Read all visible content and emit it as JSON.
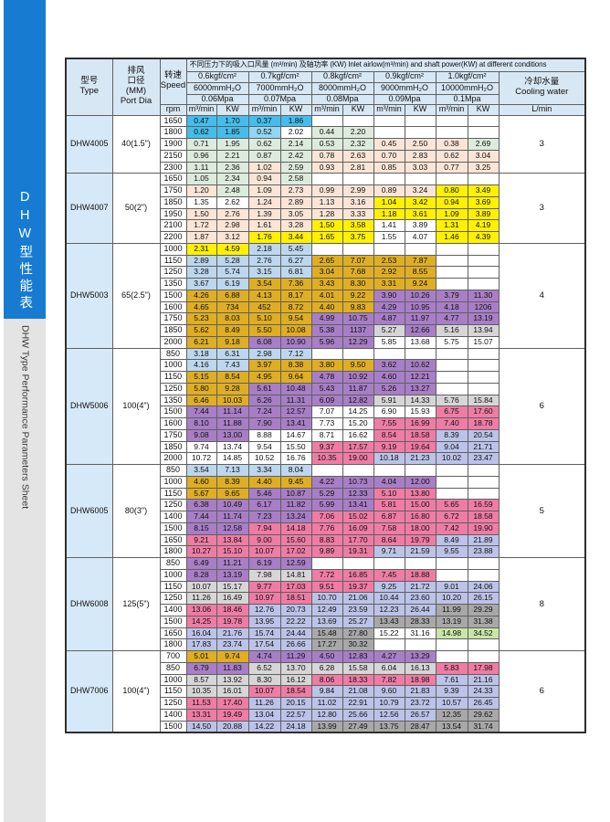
{
  "sidebar": {
    "title_cn": "DHW型性能表",
    "title_en": "DHW Type Performance Parameters Sheet",
    "bar_color": "#177BD1",
    "bar_gray": "#E4E4E4"
  },
  "table": {
    "header": {
      "model": "型号\nType",
      "port": "排风\n口径\n(MM)\nPort Dia",
      "speed": "转速\nSpeed",
      "rpm": "rpm",
      "main_title": "不同压力下的吸入口风量 (m³/min) 及轴功率 (KW) Inlet airlow(m³/min) and shaft power(KW) at different conditions",
      "cooling": "冷却水量\nCooling water",
      "cooling_unit": "L/min",
      "unit_flow": "m³/min",
      "unit_power": "KW",
      "header_bg": "#D8E7F4",
      "groups": [
        {
          "kgf": "0.6kgf/cm²",
          "mmh2o": "6000mmH₂O",
          "mpa": "0.06Mpa"
        },
        {
          "kgf": "0.7kgf/cm²",
          "mmh2o": "7000mmH₂O",
          "mpa": "0.07Mpa"
        },
        {
          "kgf": "0.8kgf/cm²",
          "mmh2o": "8000mmH₂O",
          "mpa": "0.08Mpa"
        },
        {
          "kgf": "0.9kgf/cm²",
          "mmh2o": "9000mmH₂O",
          "mpa": "0.09Mpa"
        },
        {
          "kgf": "1.0kgf/cm²",
          "mmh2o": "10000mmH₂O",
          "mpa": "0.1Mpa"
        }
      ]
    },
    "palette": {
      "B": "#45BDEC",
      "C": "#93D5F3",
      "L": "#BDD7EE",
      "G": "#DDEBDC",
      "P": "#FBE5D6",
      "Y": "#FFF101",
      "O": "#DFAE24",
      "U": "#A87EC6",
      "K": "#EF7CA4",
      "V": "#BCC3E8",
      "A": "#A8A8A8",
      "D": "#D6D6D6",
      "N": "#C9E6A8",
      "W": "#FFFFFF"
    },
    "groups": [
      {
        "model": "DHW4005",
        "port": "40(1.5\")",
        "cooling": "3",
        "rows": [
          {
            "rpm": "1650",
            "c": [
              "0.47|B",
              "1.70|B",
              "0.37|B",
              "1.86|B",
              "|W",
              "|W",
              "|W",
              "|W",
              "|W",
              "|W"
            ]
          },
          {
            "rpm": "1800",
            "c": [
              "0.62|B",
              "1.85|B",
              "0.52|C",
              "2.02|W",
              "0.44|G",
              "2.20|G",
              "|W",
              "|W",
              "|W",
              "|W"
            ]
          },
          {
            "rpm": "1900",
            "c": [
              "0.71|G",
              "1.95|G",
              "0.62|G",
              "2.14|G",
              "0.53|G",
              "2.32|G",
              "0.45|P",
              "2.50|P",
              "0.38|P",
              "2.69|G"
            ]
          },
          {
            "rpm": "2150",
            "c": [
              "0.96|G",
              "2.21|G",
              "0.87|G",
              "2.42|G",
              "0.78|P",
              "2.63|P",
              "0.70|P",
              "2.83|P",
              "0.62|P",
              "3.04|P"
            ]
          },
          {
            "rpm": "2300",
            "c": [
              "1.11|G",
              "2.36|G",
              "1.02|P",
              "2.59|G",
              "0.93|P",
              "2.81|P",
              "0.85|P",
              "3.03|P",
              "0.77|P",
              "3.25|P"
            ]
          }
        ]
      },
      {
        "model": "DHW4007",
        "port": "50(2\")",
        "cooling": "3",
        "rows": [
          {
            "rpm": "1650",
            "c": [
              "1.05|G",
              "2.34|G",
              "0.94|P",
              "2.58|G",
              "|W",
              "|W",
              "|W",
              "|W",
              "|W",
              "|W"
            ]
          },
          {
            "rpm": "1750",
            "c": [
              "1.20|P",
              "2.48|G",
              "1.09|P",
              "2.73|P",
              "0.99|P",
              "2.99|P",
              "0.89|P",
              "3.24|P",
              "0.80|Y",
              "3.49|Y"
            ]
          },
          {
            "rpm": "1850",
            "c": [
              "1.35|W",
              "2.62|W",
              "1.24|P",
              "2.89|P",
              "1.13|P",
              "3.16|P",
              "1.04|Y",
              "3.42|Y",
              "0.94|Y",
              "3.69|Y"
            ]
          },
          {
            "rpm": "1950",
            "c": [
              "1.50|P",
              "2.76|P",
              "1.39|P",
              "3.05|P",
              "1.28|P",
              "3.33|P",
              "1.18|Y",
              "3.61|Y",
              "1.09|Y",
              "3.89|Y"
            ]
          },
          {
            "rpm": "2100",
            "c": [
              "1.72|P",
              "2.98|P",
              "1.61|P",
              "3.28|P",
              "1.50|Y",
              "3.58|Y",
              "1.41|W",
              "3.89|W",
              "1.31|Y",
              "4.19|Y"
            ]
          },
          {
            "rpm": "2200",
            "c": [
              "1.87|P",
              "3.12|P",
              "1.76|Y",
              "3.44|Y",
              "1.65|Y",
              "3.75|Y",
              "1.55|W",
              "4.07|W",
              "1.46|Y",
              "4.39|Y"
            ]
          }
        ]
      },
      {
        "model": "DHW5003",
        "port": "65(2.5\")",
        "cooling": "4",
        "rows": [
          {
            "rpm": "1000",
            "c": [
              "2.31|Y",
              "4.59|Y",
              "2.18|L",
              "5.45|L",
              "|W",
              "|W",
              "|W",
              "|W",
              "|W",
              "|W"
            ]
          },
          {
            "rpm": "1150",
            "c": [
              "2.89|L",
              "5.28|L",
              "2.76|L",
              "6.27|L",
              "2.65|O",
              "7.07|O",
              "2.53|O",
              "7.87|O",
              "|W",
              "|W"
            ]
          },
          {
            "rpm": "1250",
            "c": [
              "3.28|L",
              "5.74|L",
              "3.15|L",
              "6.81|L",
              "3.04|O",
              "7.68|O",
              "2.92|O",
              "8.55|O",
              "|W",
              "|W"
            ]
          },
          {
            "rpm": "1350",
            "c": [
              "3.67|L",
              "6.19|L",
              "3.54|O",
              "7.36|O",
              "3.43|O",
              "8.30|O",
              "3.31|O",
              "9.24|O",
              "|W",
              "|W"
            ]
          },
          {
            "rpm": "1500",
            "c": [
              "4.26|O",
              "6.88|O",
              "4.13|O",
              "8.17|O",
              "4.01|O",
              "9.22|O",
              "3.90|U",
              "10.26|U",
              "3.79|U",
              "11.30|U"
            ]
          },
          {
            "rpm": "1600",
            "c": [
              "4.65|O",
              "734|O",
              "452|O",
              "8.72|O",
              "4.40|O",
              "9.83|O",
              "4.29|U",
              "10.95|U",
              "4.18|U",
              "1206|U"
            ]
          },
          {
            "rpm": "1750",
            "c": [
              "5.23|O",
              "8.03|O",
              "5.10|O",
              "9.54|O",
              "4.99|U",
              "10.75|U",
              "4.87|U",
              "11.97|U",
              "4.77|U",
              "13.19|U"
            ]
          },
          {
            "rpm": "1850",
            "c": [
              "5.62|O",
              "8.49|O",
              "5.50|O",
              "10.08|O",
              "5.38|U",
              "1137|U",
              "5.27|D",
              "12.66|U",
              "5.16|D",
              "13.94|D"
            ]
          },
          {
            "rpm": "2000",
            "c": [
              "6.21|O",
              "9.18|O",
              "6.08|U",
              "10.90|U",
              "5.96|U",
              "12.29|U",
              "5.85|W",
              "13.68|W",
              "5.75|W",
              "15.07|W"
            ]
          }
        ]
      },
      {
        "model": "DHW5006",
        "port": "100(4\")",
        "cooling": "6",
        "rows": [
          {
            "rpm": "850",
            "c": [
              "3.18|L",
              "6.31|L",
              "2.98|L",
              "7.12|L",
              "|W",
              "|W",
              "|W",
              "|W",
              "|W",
              "|W"
            ]
          },
          {
            "rpm": "1000",
            "c": [
              "4.16|L",
              "7.43|L",
              "3.97|O",
              "8.38|O",
              "3.80|O",
              "9.50|O",
              "3.62|U",
              "10.62|U",
              "|W",
              "|W"
            ]
          },
          {
            "rpm": "1150",
            "c": [
              "5.15|O",
              "8.54|O",
              "4.95|O",
              "9.64|O",
              "4.78|U",
              "10.92|U",
              "4.60|U",
              "12.21|U",
              "|W",
              "|W"
            ]
          },
          {
            "rpm": "1250",
            "c": [
              "5.80|O",
              "9.28|O",
              "5.61|U",
              "10.48|U",
              "5.43|U",
              "11.87|U",
              "5.26|U",
              "13.27|U",
              "|W",
              "|W"
            ]
          },
          {
            "rpm": "1350",
            "c": [
              "6.46|O",
              "10.03|O",
              "6.26|U",
              "11.31|U",
              "6.09|U",
              "12.82|U",
              "5.91|D",
              "14.33|D",
              "5.76|D",
              "15.84|D"
            ]
          },
          {
            "rpm": "1500",
            "c": [
              "7.44|U",
              "11.14|U",
              "7.24|U",
              "12.57|U",
              "7.07|W",
              "14.25|W",
              "6.90|W",
              "15.93|W",
              "6.75|K",
              "17.60|K"
            ]
          },
          {
            "rpm": "1600",
            "c": [
              "8.10|U",
              "11.88|U",
              "7.90|U",
              "13.41|U",
              "7.73|W",
              "15.20|W",
              "7.55|K",
              "16.99|K",
              "7.40|K",
              "18.78|K"
            ]
          },
          {
            "rpm": "1750",
            "c": [
              "9.08|U",
              "13.00|U",
              "8.88|W",
              "14.67|W",
              "8.71|W",
              "16.62|W",
              "8.54|K",
              "18.58|K",
              "8.39|V",
              "20.54|V"
            ]
          },
          {
            "rpm": "1850",
            "c": [
              "9.74|W",
              "13.74|W",
              "9.54|W",
              "15.50|W",
              "9.37|K",
              "17.57|K",
              "9.19|K",
              "19.64|K",
              "9.04|V",
              "21.71|V"
            ]
          },
          {
            "rpm": "2000",
            "c": [
              "10.72|W",
              "14.85|W",
              "10.52|W",
              "16.76|W",
              "10.35|K",
              "19.00|K",
              "10.18|V",
              "21.23|V",
              "10.02|V",
              "23.47|V"
            ]
          }
        ]
      },
      {
        "model": "DHW6005",
        "port": "80(3\")",
        "cooling": "5",
        "rows": [
          {
            "rpm": "850",
            "c": [
              "3.54|L",
              "7.13|L",
              "3.34|L",
              "8.04|L",
              "|W",
              "|W",
              "|W",
              "|W",
              "|W",
              "|W"
            ]
          },
          {
            "rpm": "1000",
            "c": [
              "4.60|O",
              "8.39|O",
              "4.40|O",
              "9.45|O",
              "4.22|U",
              "10.73|U",
              "4.04|U",
              "12.00|U",
              "|W",
              "|W"
            ]
          },
          {
            "rpm": "1150",
            "c": [
              "5.67|O",
              "9.65|O",
              "5.46|U",
              "10.87|U",
              "5.29|U",
              "12.33|U",
              "5.10|K",
              "13.80|K",
              "|W",
              "|W"
            ]
          },
          {
            "rpm": "1250",
            "c": [
              "6.38|U",
              "10.49|U",
              "6.17|U",
              "11.82|U",
              "5.99|U",
              "13.41|U",
              "5.81|K",
              "15.00|K",
              "5.65|K",
              "16.59|K"
            ]
          },
          {
            "rpm": "1400",
            "c": [
              "7.44|U",
              "11.74|U",
              "7.23|U",
              "13.24|U",
              "7.06|K",
              "15.02|K",
              "6.87|K",
              "16.80|K",
              "6.72|K",
              "18.58|K"
            ]
          },
          {
            "rpm": "1500",
            "c": [
              "8.15|U",
              "12.58|U",
              "7.94|K",
              "14.18|K",
              "7.76|K",
              "16.09|K",
              "7.58|K",
              "18.00|K",
              "7.42|K",
              "19.90|K"
            ]
          },
          {
            "rpm": "1650",
            "c": [
              "9.21|K",
              "13.84|K",
              "9.00|K",
              "15.60|K",
              "8.83|K",
              "17.70|K",
              "8.64|K",
              "19.79|K",
              "8.49|V",
              "21.89|V"
            ]
          },
          {
            "rpm": "1800",
            "c": [
              "10.27|K",
              "15.10|K",
              "10.07|K",
              "17.02|K",
              "9.89|K",
              "19.31|K",
              "9.71|V",
              "21.59|V",
              "9.55|V",
              "23.88|V"
            ]
          }
        ]
      },
      {
        "model": "DHW6008",
        "port": "125(5\")",
        "cooling": "8",
        "rows": [
          {
            "rpm": "850",
            "c": [
              "6.49|U",
              "11.21|U",
              "6.19|U",
              "12.59|U",
              "|W",
              "|W",
              "|W",
              "|W",
              "|W",
              "|W"
            ]
          },
          {
            "rpm": "1000",
            "c": [
              "8.28|U",
              "13.19|U",
              "7.98|D",
              "14.81|D",
              "7.72|K",
              "16.85|K",
              "7.45|K",
              "18.88|K",
              "|W",
              "|W"
            ]
          },
          {
            "rpm": "1150",
            "c": [
              "10.07|D",
              "15.17|D",
              "9.77|K",
              "17.03|K",
              "9.51|K",
              "19.37|K",
              "9.25|V",
              "21.72|V",
              "9.01|V",
              "24.06|V"
            ]
          },
          {
            "rpm": "1250",
            "c": [
              "11.26|D",
              "16.49|D",
              "10.97|K",
              "18.51|K",
              "10.70|V",
              "21.06|V",
              "10.44|V",
              "23.60|V",
              "10.20|V",
              "26.15|V"
            ]
          },
          {
            "rpm": "1400",
            "c": [
              "13.06|K",
              "18.46|K",
              "12.76|V",
              "20.73|V",
              "12.49|V",
              "23.59|V",
              "12.23|V",
              "26.44|V",
              "11.99|A",
              "29.29|A"
            ]
          },
          {
            "rpm": "1500",
            "c": [
              "14.25|K",
              "19.78|K",
              "13.95|V",
              "22.22|V",
              "13.69|V",
              "25.27|V",
              "13.43|A",
              "28.33|A",
              "13.19|A",
              "31.38|A"
            ]
          },
          {
            "rpm": "1650",
            "c": [
              "16.04|V",
              "21.76|V",
              "15.74|V",
              "24.44|V",
              "15.48|A",
              "27.80|A",
              "15.22|W",
              "31.16|W",
              "14.98|N",
              "34.52|N"
            ]
          },
          {
            "rpm": "1800",
            "c": [
              "17.83|V",
              "23.74|V",
              "17.54|V",
              "26.66|V",
              "17.27|A",
              "30.32|A",
              "|W",
              "|W",
              "|W",
              "|W"
            ]
          }
        ]
      },
      {
        "model": "DHW7006",
        "port": "100(4\")",
        "cooling": "6",
        "rows": [
          {
            "rpm": "700",
            "c": [
              "5.01|O",
              "9.74|O",
              "4.74|U",
              "11.29|U",
              "4.50|U",
              "12.83|U",
              "4.27|U",
              "13.29|U",
              "|W",
              "|W"
            ]
          },
          {
            "rpm": "850",
            "c": [
              "6.79|U",
              "11.83|U",
              "6.52|D",
              "13.70|D",
              "6.28|D",
              "15.58|D",
              "6.04|D",
              "16.13|D",
              "5.83|K",
              "17.98|K"
            ]
          },
          {
            "rpm": "1000",
            "c": [
              "8.57|D",
              "13.92|D",
              "8.30|D",
              "16.12|D",
              "8.06|K",
              "18.33|K",
              "7.82|K",
              "18.98|K",
              "7.61|V",
              "21.16|V"
            ]
          },
          {
            "rpm": "1150",
            "c": [
              "10.35|D",
              "16.01|D",
              "10.07|K",
              "18.54|K",
              "9.84|V",
              "21.08|V",
              "9.60|V",
              "21.83|V",
              "9.39|V",
              "24.33|V"
            ]
          },
          {
            "rpm": "1250",
            "c": [
              "11.53|K",
              "17.40|K",
              "11.26|V",
              "20.15|V",
              "11.02|V",
              "22.91|V",
              "10.79|V",
              "23.72|V",
              "10.57|V",
              "26.45|V"
            ]
          },
          {
            "rpm": "1400",
            "c": [
              "13.31|K",
              "19.49|K",
              "13.04|V",
              "22.57|V",
              "12.80|V",
              "25.66|V",
              "12.56|V",
              "26.57|V",
              "12.35|A",
              "29.62|A"
            ]
          },
          {
            "rpm": "1500",
            "c": [
              "14.50|V",
              "20.88|V",
              "14.22|V",
              "24.18|V",
              "13.99|A",
              "27.49|A",
              "13.75|A",
              "28.47|A",
              "13.54|A",
              "31.74|A"
            ]
          }
        ]
      }
    ]
  }
}
